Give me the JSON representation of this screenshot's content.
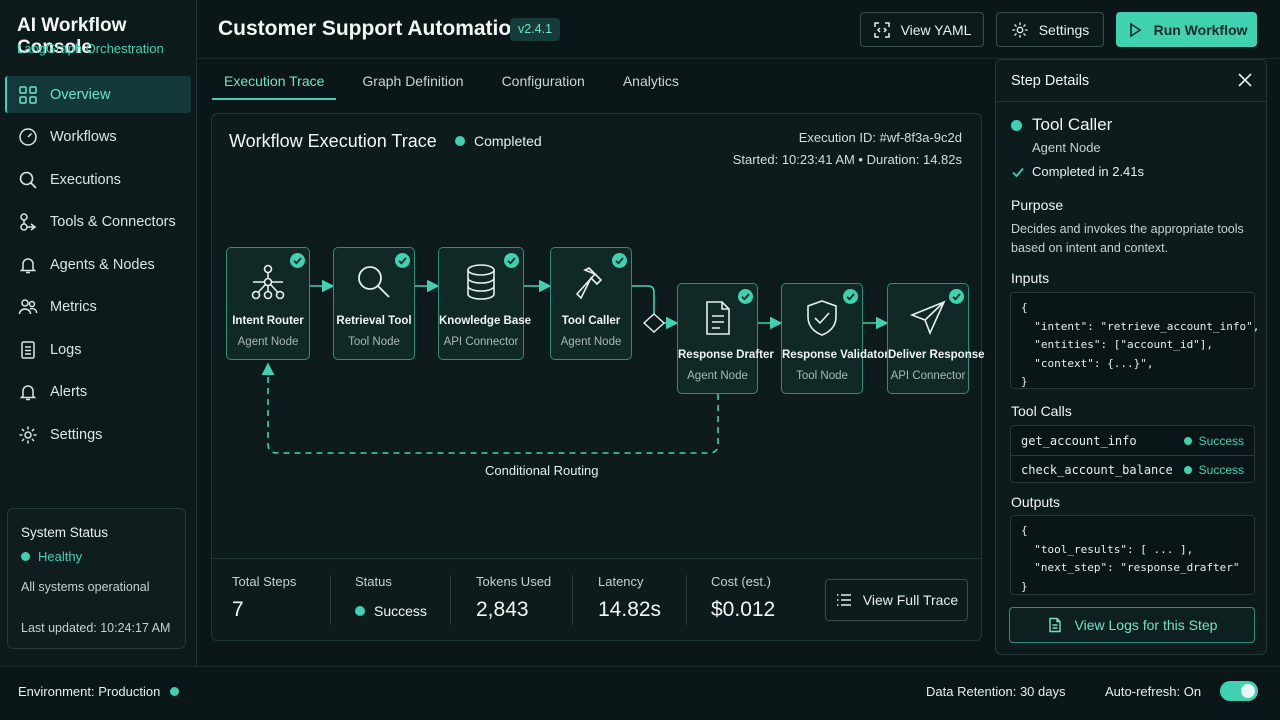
{
  "app": {
    "title": "AI Workflow Console",
    "subtitle": "LangGraph Orchestration"
  },
  "sidebar": {
    "items": [
      {
        "label": "Overview",
        "icon": "grid-icon",
        "active": true
      },
      {
        "label": "Workflows",
        "icon": "gauge-icon"
      },
      {
        "label": "Executions",
        "icon": "search-icon"
      },
      {
        "label": "Tools & Connectors",
        "icon": "connectors-icon"
      },
      {
        "label": "Agents & Nodes",
        "icon": "bell-icon"
      },
      {
        "label": "Metrics",
        "icon": "users-icon"
      },
      {
        "label": "Logs",
        "icon": "document-icon"
      },
      {
        "label": "Alerts",
        "icon": "bell-icon"
      },
      {
        "label": "Settings",
        "icon": "gear-icon"
      }
    ],
    "system_status": {
      "title": "System Status",
      "state": "Healthy",
      "message": "All systems operational",
      "updated": "Last updated: 10:24:17 AM"
    }
  },
  "header": {
    "title": "Customer Support Automation",
    "version": "v2.4.1",
    "view_yaml": "View YAML",
    "settings": "Settings",
    "run": "Run Workflow"
  },
  "tabs": [
    {
      "label": "Execution Trace",
      "active": true
    },
    {
      "label": "Graph Definition"
    },
    {
      "label": "Configuration"
    },
    {
      "label": "Analytics"
    }
  ],
  "trace": {
    "title": "Workflow Execution Trace",
    "status": "Completed",
    "execution_id": "Execution ID: #wf-8f3a-9c2d",
    "meta": "Started: 10:23:41 AM  •  Duration: 14.82s",
    "nodes": [
      {
        "name": "Intent Router",
        "type": "Agent Node",
        "icon": "network-icon"
      },
      {
        "name": "Retrieval Tool",
        "type": "Tool Node",
        "icon": "search-icon"
      },
      {
        "name": "Knowledge Base",
        "type": "API Connector",
        "icon": "database-icon"
      },
      {
        "name": "Tool Caller",
        "type": "Agent Node",
        "icon": "hammer-icon"
      },
      {
        "name": "Response Drafter",
        "type": "Agent Node",
        "icon": "document-icon"
      },
      {
        "name": "Response Validator",
        "type": "Tool Node",
        "icon": "shield-check-icon"
      },
      {
        "name": "Deliver Response",
        "type": "API Connector",
        "icon": "send-icon"
      }
    ],
    "route_label": "Conditional Routing"
  },
  "stats": {
    "total_steps": {
      "label": "Total Steps",
      "value": "7"
    },
    "status": {
      "label": "Status",
      "value": "Success"
    },
    "tokens": {
      "label": "Tokens Used",
      "value": "2,843"
    },
    "latency": {
      "label": "Latency",
      "value": "14.82s"
    },
    "cost": {
      "label": "Cost (est.)",
      "value": "$0.012"
    },
    "view_trace": "View Full Trace"
  },
  "details": {
    "title": "Step Details",
    "node_name": "Tool Caller",
    "node_type": "Agent Node",
    "completed": "Completed in 2.41s",
    "purpose_h": "Purpose",
    "purpose": "Decides and invokes the appropriate tools based on intent and context.",
    "inputs_h": "Inputs",
    "inputs": "{\n  \"intent\": \"retrieve_account_info\",\n  \"entities\": [\"account_id\"],\n  \"context\": {...}\",\n}",
    "tool_calls_h": "Tool Calls",
    "tool_calls": [
      {
        "name": "get_account_info",
        "status": "Success"
      },
      {
        "name": "check_account_balance",
        "status": "Success"
      }
    ],
    "outputs_h": "Outputs",
    "outputs": "{\n  \"tool_results\": [ ... ],\n  \"next_step\": \"response_drafter\"\n}",
    "logs_button": "View Logs for this Step"
  },
  "footer": {
    "environment": "Environment: Production",
    "retention": "Data Retention: 30 days",
    "auto_refresh": "Auto-refresh: On",
    "auto_refresh_on": true
  },
  "colors": {
    "accent": "#3fd1b0",
    "background": "#0b1618",
    "panel": "#0e1b1d"
  }
}
